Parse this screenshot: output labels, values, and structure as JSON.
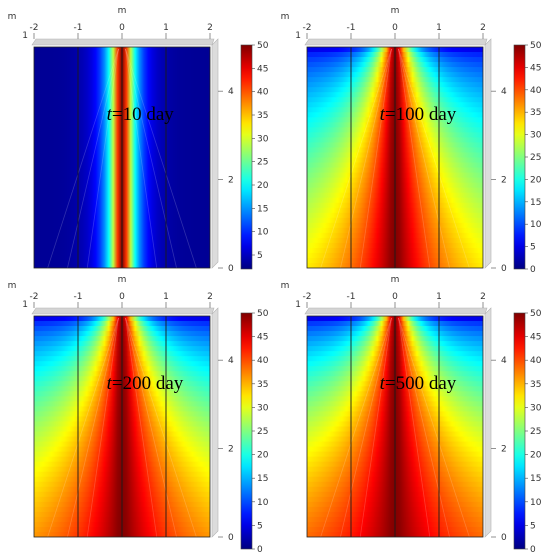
{
  "chart_data": [
    {
      "type": "heatmap",
      "time_label": {
        "italic_symbol": "t",
        "rest": "=10 day"
      },
      "x_axis": {
        "unit": "m",
        "ticks": [
          -2,
          -1,
          0,
          1,
          2
        ],
        "range": [
          -2,
          2
        ]
      },
      "y_axis": {
        "unit": "m",
        "ticks": [
          0,
          2,
          4
        ],
        "range": [
          0,
          5
        ]
      },
      "colorbar": {
        "ticks": [
          5,
          10,
          15,
          20,
          25,
          30,
          35,
          40,
          45,
          50
        ],
        "range": [
          2,
          50
        ]
      },
      "field": {
        "center_value": 50,
        "background_value": 3,
        "core_half_width": 0.05,
        "spread_top": 0.25,
        "spread_bottom": 0.25,
        "top_value": 3
      }
    },
    {
      "type": "heatmap",
      "time_label": {
        "italic_symbol": "t",
        "rest": "=100 day"
      },
      "x_axis": {
        "unit": "m",
        "ticks": [
          -2,
          -1,
          0,
          1,
          2
        ],
        "range": [
          -2,
          2
        ]
      },
      "y_axis": {
        "unit": "m",
        "ticks": [
          0,
          2,
          4
        ],
        "range": [
          0,
          5
        ]
      },
      "colorbar": {
        "ticks": [
          0,
          5,
          10,
          15,
          20,
          25,
          30,
          35,
          40,
          45,
          50
        ],
        "range": [
          0,
          50
        ]
      },
      "field": {
        "center_value": 50,
        "background_value": 26,
        "core_half_width": 0.05,
        "spread_top": 0.35,
        "spread_bottom": 1.4,
        "top_value": 5
      }
    },
    {
      "type": "heatmap",
      "time_label": {
        "italic_symbol": "t",
        "rest": "=200 day"
      },
      "x_axis": {
        "unit": "m",
        "ticks": [
          -2,
          -1,
          0,
          1,
          2
        ],
        "range": [
          -2,
          2
        ]
      },
      "y_axis": {
        "unit": "m",
        "ticks": [
          0,
          2,
          4
        ],
        "range": [
          0,
          5
        ]
      },
      "colorbar": {
        "ticks": [
          0,
          5,
          10,
          15,
          20,
          25,
          30,
          35,
          40,
          45,
          50
        ],
        "range": [
          0,
          50
        ]
      },
      "field": {
        "center_value": 50,
        "background_value": 31,
        "core_half_width": 0.05,
        "spread_top": 0.35,
        "spread_bottom": 1.5,
        "top_value": 5
      }
    },
    {
      "type": "heatmap",
      "time_label": {
        "italic_symbol": "t",
        "rest": "=500 day"
      },
      "x_axis": {
        "unit": "m",
        "ticks": [
          -2,
          -1,
          0,
          1,
          2
        ],
        "range": [
          -2,
          2
        ]
      },
      "y_axis": {
        "unit": "m",
        "ticks": [
          0,
          2,
          4
        ],
        "range": [
          0,
          5
        ]
      },
      "colorbar": {
        "ticks": [
          0,
          5,
          10,
          15,
          20,
          25,
          30,
          35,
          40,
          45,
          50
        ],
        "range": [
          0,
          50
        ]
      },
      "field": {
        "center_value": 50,
        "background_value": 34,
        "core_half_width": 0.05,
        "spread_top": 0.35,
        "spread_bottom": 1.5,
        "top_value": 5
      }
    }
  ]
}
